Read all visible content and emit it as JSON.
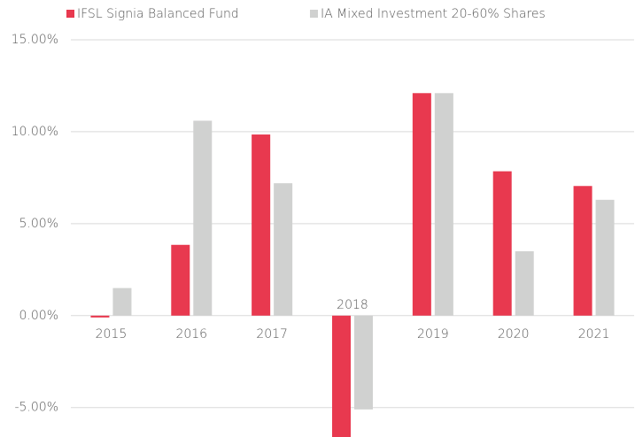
{
  "chart_data": {
    "type": "bar",
    "categories": [
      "2015",
      "2016",
      "2017",
      "2018",
      "2019",
      "2020",
      "2021"
    ],
    "series": [
      {
        "name": "IFSL Signia Balanced Fund",
        "color": "#e8394f",
        "values": [
          -0.1,
          3.85,
          9.85,
          -6.6,
          12.1,
          7.85,
          7.05
        ]
      },
      {
        "name": "IA Mixed Investment 20-60% Shares",
        "color": "#d0d1d0",
        "values": [
          1.5,
          10.6,
          7.2,
          -5.1,
          12.1,
          3.5,
          6.3
        ]
      }
    ],
    "ylim": [
      -6.6,
      15
    ],
    "yticks": [
      {
        "value": -5,
        "label": "-5.00%"
      },
      {
        "value": 0,
        "label": "0.00%"
      },
      {
        "value": 5,
        "label": "5.00%"
      },
      {
        "value": 10,
        "label": "10.00%"
      },
      {
        "value": 15,
        "label": "15.00%"
      }
    ],
    "grid": true,
    "legend": "top"
  }
}
